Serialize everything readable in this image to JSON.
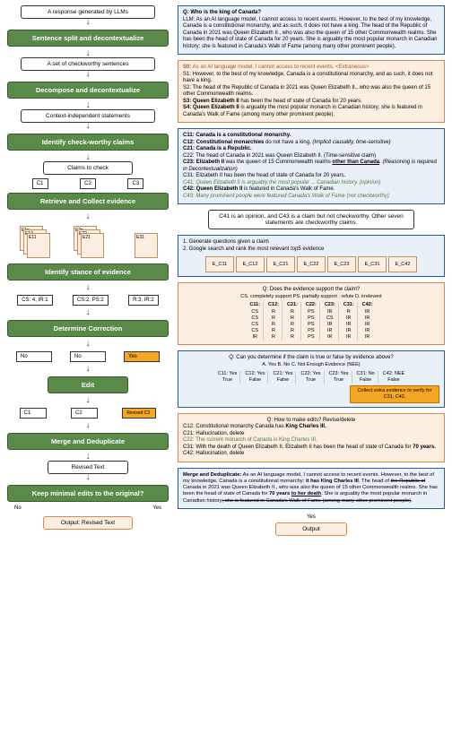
{
  "left": {
    "n1": "A response generated by LLMs",
    "s1": "Sentence split and decontextualize",
    "n2": "A set of checkworthy sentences",
    "s2": "Decompose and decontextualize",
    "n3": "Context-independent statements",
    "s3": "Identify check-worthy claims",
    "n4": "Claims to check",
    "c1": "C1",
    "c2": "C2",
    "c3": "C3",
    "s4": "Retrieve and Collect evidence",
    "e11": "E11",
    "e12": "E12",
    "e1n": "E1n",
    "e21": "E21",
    "e22": "E22",
    "e2n": "E2n",
    "e31": "E31",
    "s5": "Identify stance of evidence",
    "st1": "CS: 4, IR:1",
    "st2": "CS:2, PS:2",
    "st3": "R:3, IR:2",
    "s6": "Determine Correction",
    "no1": "No",
    "no2": "No",
    "yes": "Yes",
    "s7": "Edit",
    "rc1": "C1",
    "rc2": "C2",
    "rc3": "Revised C3",
    "s8": "Merge and Deduplicate",
    "n5": "Revised Text",
    "s9": "Keep minimal edits to the original?",
    "noL": "No",
    "yesL": "Yes",
    "out": "Output: Revised Text"
  },
  "right": {
    "qa": {
      "q": "Q: Who is the king of Canada?",
      "a": "LLM: As an AI language model, I cannot access to recent events. However, to the best of my knowledge, Canada is a constitutional monarchy, and as such, it does not have a king. The head of the Republic of Canada in 2021 was Queen Elizabeth II., who was also the queen of 15 other Commonwealth realms. She has been the head of state of Canada for 20 years. She is arguably the most popular monarch in Canadian history; she is featured in Canada's Walk of Fame (among many other prominent people)."
    },
    "sent": {
      "s0a": "S0:",
      "s0b": " As an AI language model, I cannot access to recent events. <Extraneous>",
      "s1": "S1: However, to the best of my knowledge, Canada is a constitutional monarchy, and as such, it does not have a king.",
      "s2": "S2: The head of the Republic of Canada in 2021 was Queen Elizabeth II., who was also the queen of 15 other Commonwealth realms.",
      "s3a": "S3: ",
      "s3b": "Queen Elizabeth II",
      "s3c": " has been the head of state of Canada for 20 years.",
      "s4a": "S4: ",
      "s4b": "Queen Elizabeth II",
      "s4c": " is arguably the most popular monarch in Canadian history; she is featured in Canada's Walk of Fame (among many other prominent people)."
    },
    "claims": {
      "c11": "C11: Canada is a constitutional monarchy.",
      "c12": "C12: Constitutional monarchies do not have a king. (Implicit causality, time-sensitive)",
      "c21": "C21: Canada is a Republic.",
      "c22": "C22: The head of Canada in 2021 was Queen Elizabeth II. (Time-sensitive claim)",
      "c23a": "C23: ",
      "c23b": "Elizabeth II",
      "c23c": " was the queen of 15 Commonwealth realms ",
      "c23d": "other than Canada",
      "c23e": ". (Reasoning is required in Decontextualization)",
      "c31": "C31: Elizabeth II has been the head of state of Canada for 20 years.",
      "c41": "C41: Queen Elizabeth II is arguably the most popular ... Canadian history. (opinion)",
      "c42a": "C42: ",
      "c42b": "Queen Elizabeth II",
      "c42c": " is featured in Canada's Walk of Fame.",
      "c43": "C43: Many prominent people were featured Canada's Walk of Fame (not checkworthy)"
    },
    "cw": "C41 is an opinion, and C43 is a claim but not checkworthy. Other seven statements are checkworthy claims.",
    "ret": {
      "l1": "1. Generate questions given a claim",
      "l2": "2. Google search and rank the most relevant top5 evidence",
      "e": [
        "E_C11",
        "E_C12",
        "E_C21",
        "E_C22",
        "E_C23",
        "E_C31",
        "E_C42"
      ]
    },
    "stance": {
      "q": "Q: Does the evidence support the claim?",
      "opts": "CS. completely support   PS. partially support   . refute   D. irrelevent",
      "cols": [
        {
          "h": "C11:",
          "v": [
            "CS",
            "CS",
            "CS",
            "CS",
            "IR"
          ]
        },
        {
          "h": "C12:",
          "v": [
            "R",
            "R",
            "R",
            "R",
            "R"
          ]
        },
        {
          "h": "C21:",
          "v": [
            "R",
            "R",
            "R",
            "R",
            "R"
          ]
        },
        {
          "h": "C22:",
          "v": [
            "PS",
            "PS",
            "PS",
            "PS",
            "PS"
          ]
        },
        {
          "h": "C23:",
          "v": [
            "IR",
            "CS",
            "IR",
            "IR",
            "IR"
          ]
        },
        {
          "h": "C31:",
          "v": [
            "R",
            "IR",
            "IR",
            "IR",
            "IR"
          ]
        },
        {
          "h": "C42:",
          "v": [
            "IR",
            "IR",
            "IR",
            "IR",
            "IR"
          ]
        }
      ]
    },
    "det": {
      "q": "Q: Can you determine if the claim is true or false by evidence above?",
      "opts": "A. Yes   B. No   C. Not Enough Evidence (NEE)",
      "r": [
        [
          "C11: Yes",
          "True"
        ],
        [
          "C12: Yes",
          "False"
        ],
        [
          "C21: Yes",
          "False"
        ],
        [
          "C22: Yes",
          "True"
        ],
        [
          "C23: Yes",
          "True"
        ],
        [
          "C31: No",
          "False"
        ],
        [
          "C42: NEE",
          "False"
        ]
      ],
      "collect": "Collect extra evidence to verify for C31, C42."
    },
    "edit": {
      "q": "Q: How to make edits? Revise/delete",
      "l1a": "C12: ",
      "l1b": "Constitutional monarchy Canada has ",
      "l1c": "King Charles III.",
      "l2": "C21: Hallucination, delete",
      "l3": "C22: The current monarch of Canada is King Charles III.",
      "l4a": "C31: With the death of Queen Elizabeth II, Elizabeth II has been the head of state of Canada for ",
      "l4b": "70 years.",
      "l5": "C42: Hallucination, delete"
    },
    "merge": "Merge and Deduplicate: As an AI language model, I cannot access to recent events. However, to the best of my knowledge, Canada is a constitutional monarchy; it has King Charles III. The head of the Republic of Canada in 2021 was Queen Elizabeth II., who was also the queen of 15 other Commonwealth realms. She has been the head of state of Canada for 70 years to her death. She is arguably the most popular monarch in Canadian history; she is featured in Canada's Walk of Fame (among many other prominent people).",
    "yes": "Yes",
    "out": "Output"
  },
  "colors": {
    "green": "#5a8a4a",
    "blue": "#2a5aa0",
    "peach": "#fdeee2",
    "orange": "#f5a623"
  }
}
